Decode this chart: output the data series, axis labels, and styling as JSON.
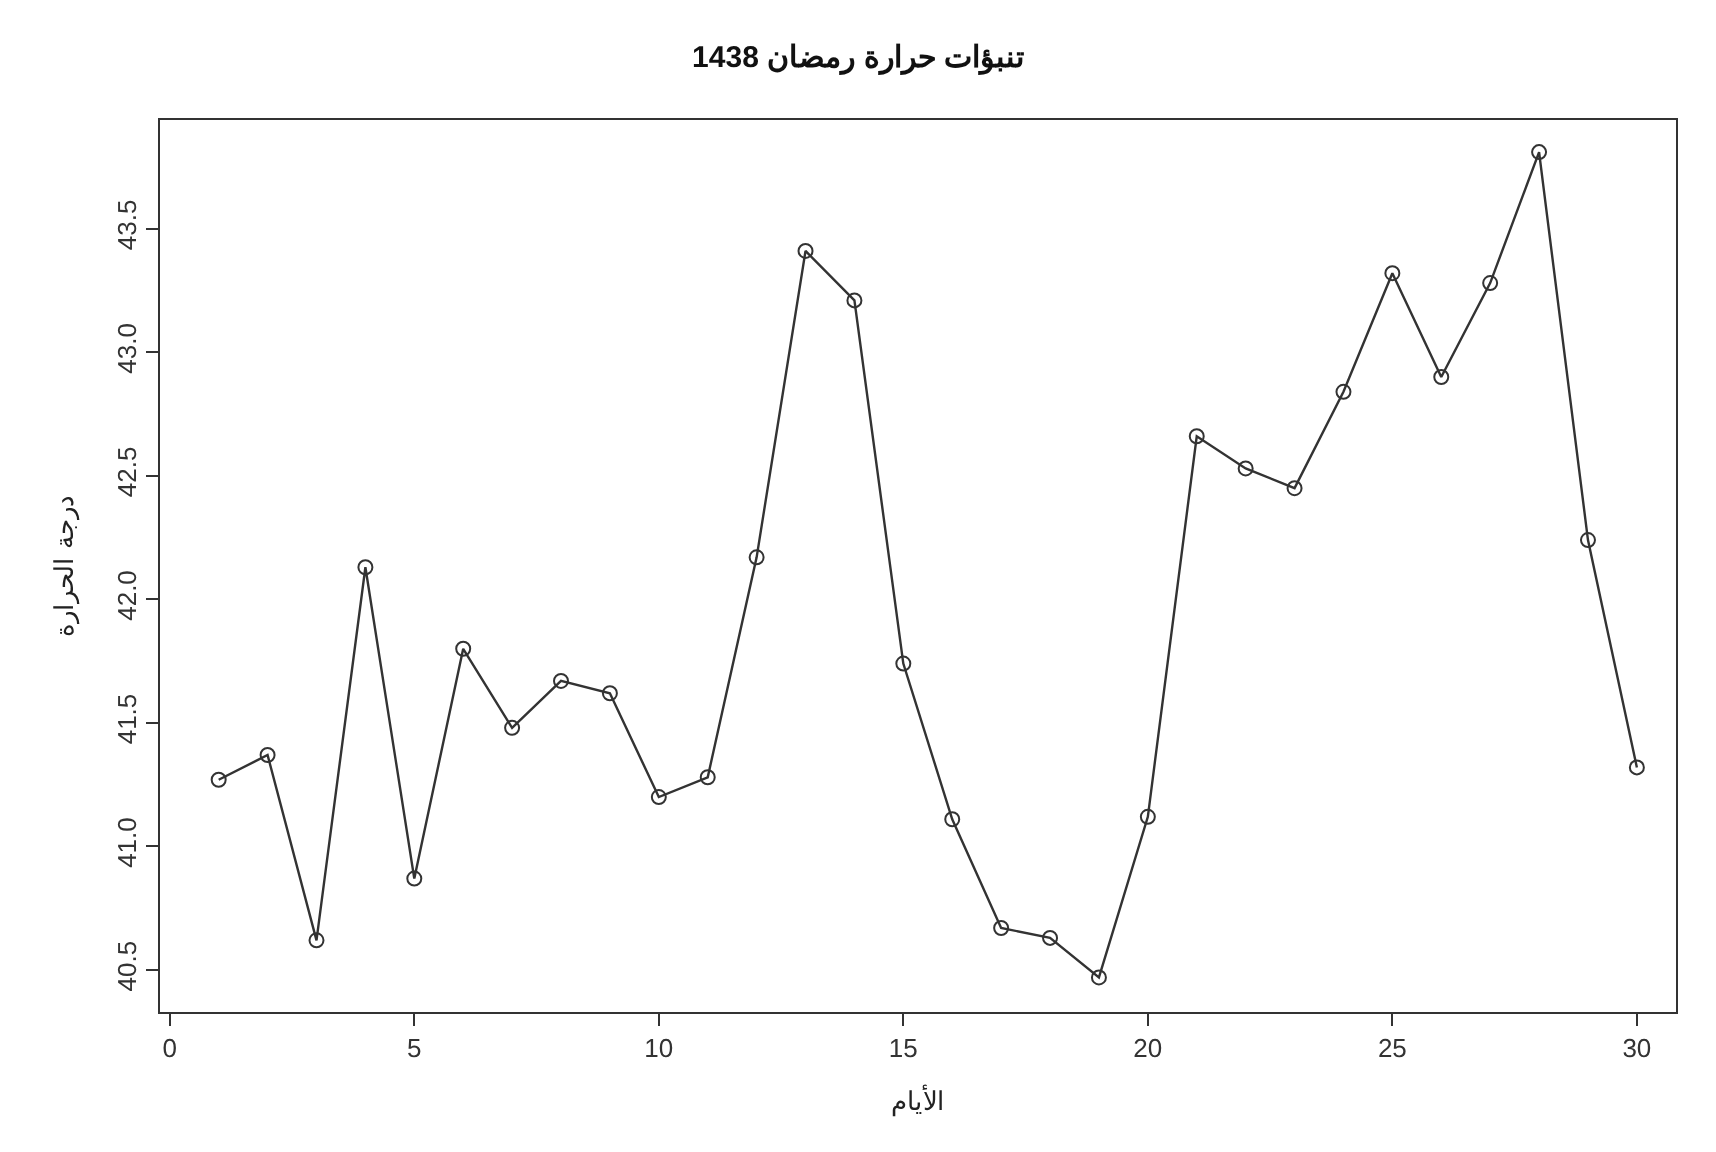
{
  "chart_data": {
    "type": "line",
    "title": "تنبؤات حرارة رمضان 1438",
    "xlabel": "الأيام",
    "ylabel": "درجة الحرارة",
    "x": [
      1,
      2,
      3,
      4,
      5,
      6,
      7,
      8,
      9,
      10,
      11,
      12,
      13,
      14,
      15,
      16,
      17,
      18,
      19,
      20,
      21,
      22,
      23,
      24,
      25,
      26,
      27,
      28,
      29,
      30
    ],
    "series": [
      {
        "color": "#333333",
        "values": [
          41.27,
          41.37,
          40.62,
          42.13,
          40.87,
          41.8,
          41.48,
          41.67,
          41.62,
          41.2,
          41.28,
          42.17,
          43.41,
          43.21,
          41.74,
          41.11,
          40.67,
          40.63,
          40.47,
          41.12,
          42.66,
          42.53,
          42.45,
          42.84,
          43.32,
          42.9,
          43.28,
          43.81,
          42.24,
          41.32
        ]
      }
    ],
    "xlim": [
      -0.2,
      30.8
    ],
    "ylim": [
      40.33,
      43.94
    ],
    "xticks": [
      0,
      5,
      10,
      15,
      20,
      25,
      30
    ],
    "yticks": [
      40.5,
      {
        "value": 41,
        "label": "41.0"
      },
      41.5,
      {
        "value": 42,
        "label": "42.0"
      },
      42.5,
      {
        "value": 43,
        "label": "43.0"
      },
      43.5
    ],
    "marker": "circle",
    "line_style": "solid"
  }
}
